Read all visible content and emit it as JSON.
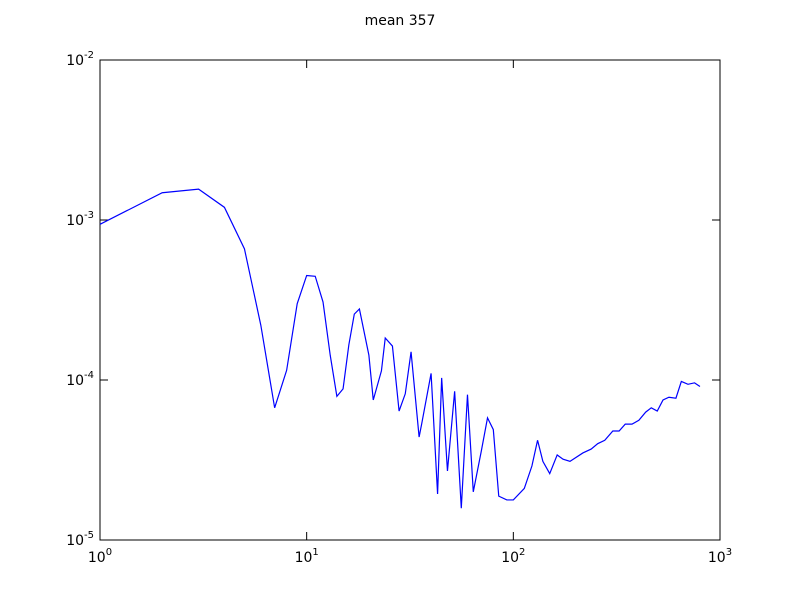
{
  "chart_data": {
    "type": "line",
    "title": "mean 357",
    "x": [
      1,
      2,
      3,
      4,
      5,
      6,
      7,
      8,
      9,
      10,
      11,
      12,
      13,
      14,
      15,
      16,
      17,
      18,
      20,
      21,
      23,
      24,
      26,
      28,
      30,
      32,
      35,
      36,
      40,
      43,
      45,
      48,
      52,
      56,
      60,
      64,
      70,
      75,
      80,
      85,
      93,
      100,
      113,
      123,
      131,
      139,
      150,
      163,
      174,
      188,
      217,
      238,
      256,
      277,
      303,
      325,
      348,
      375,
      405,
      437,
      465,
      497,
      530,
      566,
      612,
      650,
      700,
      753,
      800
    ],
    "series": [
      {
        "name": "mean",
        "color": "#0000ff",
        "values": [
          0.00094,
          0.00148,
          0.00156,
          0.0012,
          0.00066,
          0.00022,
          6.7e-05,
          0.000115,
          0.0003,
          0.00045,
          0.000445,
          0.000307,
          0.000143,
          7.9e-05,
          8.8e-05,
          0.000166,
          0.000258,
          0.000278,
          0.000143,
          7.5e-05,
          0.000114,
          0.000183,
          0.000163,
          6.4e-05,
          8.2e-05,
          0.00015,
          4.4e-05,
          5.3e-05,
          0.00011,
          1.94e-05,
          0.000103,
          2.7e-05,
          8.5e-05,
          1.58e-05,
          8.1e-05,
          2e-05,
          3.6e-05,
          5.8e-05,
          4.9e-05,
          1.88e-05,
          1.78e-05,
          1.78e-05,
          2.1e-05,
          2.9e-05,
          4.2e-05,
          3.1e-05,
          2.6e-05,
          3.4e-05,
          3.2e-05,
          3.1e-05,
          3.5e-05,
          3.7e-05,
          4e-05,
          4.2e-05,
          4.8e-05,
          4.8e-05,
          5.3e-05,
          5.3e-05,
          5.6e-05,
          6.3e-05,
          6.7e-05,
          6.4e-05,
          7.5e-05,
          7.8e-05,
          7.7e-05,
          9.8e-05,
          9.4e-05,
          9.6e-05,
          9.1e-05
        ]
      }
    ],
    "xlim": [
      1,
      1000
    ],
    "ylim": [
      1e-05,
      0.01
    ],
    "xscale": "log",
    "yscale": "log",
    "xticks": [
      {
        "value": 1,
        "label": "10^0"
      },
      {
        "value": 10,
        "label": "10^1"
      },
      {
        "value": 100,
        "label": "10^2"
      },
      {
        "value": 1000,
        "label": "10^3"
      }
    ],
    "yticks": [
      {
        "value": 1e-05,
        "label": "10^-5"
      },
      {
        "value": 0.0001,
        "label": "10^-4"
      },
      {
        "value": 0.001,
        "label": "10^-3"
      },
      {
        "value": 0.01,
        "label": "10^-2"
      }
    ]
  }
}
